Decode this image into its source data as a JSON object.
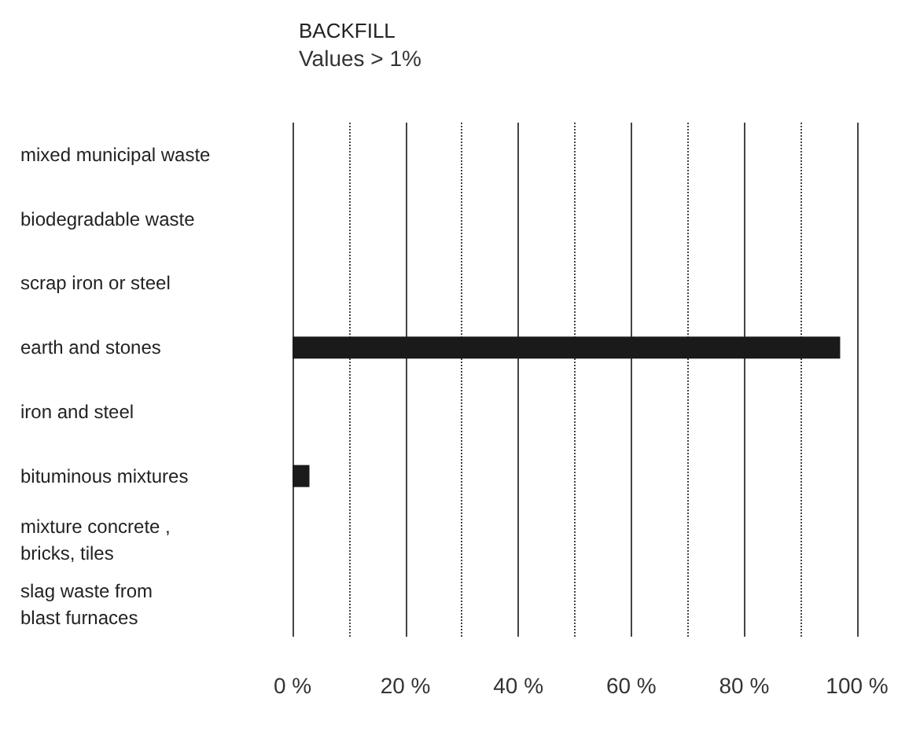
{
  "chart_data": {
    "type": "bar",
    "orientation": "horizontal",
    "title": "BACKFILL",
    "subtitle": "Values > 1%",
    "categories": [
      "mixed municipal waste",
      "biodegradable waste",
      "scrap iron or steel",
      "earth and stones",
      "iron and steel",
      "bituminous mixtures",
      "mixture concrete ,\nbricks, tiles",
      "slag waste from\nblast furnaces"
    ],
    "values": [
      null,
      null,
      null,
      97,
      null,
      3,
      null,
      null
    ],
    "color": "#1a1a1a",
    "xlim": [
      0,
      100
    ],
    "xticks": [
      {
        "value": 0,
        "label": "0 %"
      },
      {
        "value": 10,
        "label": null
      },
      {
        "value": 20,
        "label": "20 %"
      },
      {
        "value": 30,
        "label": null
      },
      {
        "value": 40,
        "label": "40 %"
      },
      {
        "value": 50,
        "label": null
      },
      {
        "value": 60,
        "label": "60 %"
      },
      {
        "value": 70,
        "label": null
      },
      {
        "value": 80,
        "label": "80 %"
      },
      {
        "value": 90,
        "label": null
      },
      {
        "value": 100,
        "label": "100 %"
      }
    ],
    "grid": "x"
  }
}
